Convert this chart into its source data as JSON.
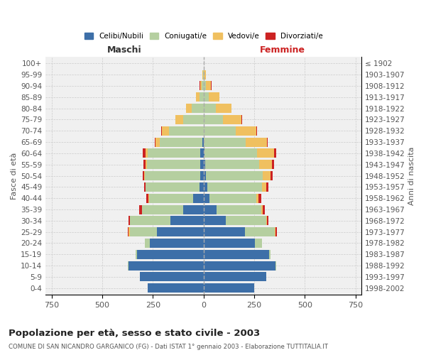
{
  "age_groups": [
    "100+",
    "95-99",
    "90-94",
    "85-89",
    "80-84",
    "75-79",
    "70-74",
    "65-69",
    "60-64",
    "55-59",
    "50-54",
    "45-49",
    "40-44",
    "35-39",
    "30-34",
    "25-29",
    "20-24",
    "15-19",
    "10-14",
    "5-9",
    "0-4"
  ],
  "birth_years": [
    "≤ 1902",
    "1903-1907",
    "1908-1912",
    "1913-1917",
    "1918-1922",
    "1923-1927",
    "1928-1932",
    "1933-1937",
    "1938-1942",
    "1943-1947",
    "1948-1952",
    "1953-1957",
    "1958-1962",
    "1963-1967",
    "1968-1972",
    "1973-1977",
    "1978-1982",
    "1983-1987",
    "1988-1992",
    "1993-1997",
    "1998-2002"
  ],
  "maschi": {
    "celibi": [
      0,
      0,
      0,
      0,
      0,
      0,
      0,
      5,
      15,
      15,
      15,
      20,
      50,
      100,
      165,
      230,
      265,
      330,
      370,
      315,
      275
    ],
    "coniugati": [
      0,
      3,
      8,
      20,
      60,
      100,
      170,
      210,
      260,
      265,
      275,
      265,
      220,
      205,
      200,
      135,
      25,
      5,
      3,
      0,
      0
    ],
    "vedovi": [
      0,
      2,
      10,
      18,
      28,
      38,
      35,
      22,
      12,
      6,
      4,
      3,
      2,
      0,
      0,
      5,
      0,
      0,
      0,
      0,
      0
    ],
    "divorziati": [
      0,
      0,
      3,
      0,
      0,
      3,
      3,
      3,
      12,
      10,
      6,
      6,
      10,
      12,
      6,
      3,
      0,
      0,
      0,
      0,
      0
    ]
  },
  "femmine": {
    "nubili": [
      0,
      0,
      2,
      2,
      2,
      2,
      2,
      2,
      5,
      8,
      12,
      18,
      30,
      65,
      110,
      205,
      255,
      325,
      355,
      310,
      250
    ],
    "coniugate": [
      0,
      2,
      10,
      22,
      60,
      95,
      155,
      205,
      260,
      265,
      280,
      270,
      230,
      220,
      200,
      145,
      32,
      5,
      3,
      0,
      0
    ],
    "vedove": [
      0,
      8,
      25,
      55,
      75,
      90,
      105,
      105,
      82,
      65,
      38,
      22,
      12,
      6,
      4,
      6,
      2,
      0,
      0,
      0,
      0
    ],
    "divorziate": [
      0,
      0,
      3,
      0,
      0,
      3,
      3,
      6,
      10,
      10,
      10,
      10,
      12,
      12,
      6,
      6,
      0,
      0,
      0,
      0,
      0
    ]
  },
  "colors": {
    "celibi": "#3d6fa8",
    "coniugati": "#b5cfa0",
    "vedovi": "#f0c060",
    "divorziati": "#cc2222"
  },
  "xlim": 780,
  "title": "Popolazione per età, sesso e stato civile - 2003",
  "subtitle": "COMUNE DI SAN NICANDRO GARGANICO (FG) - Dati ISTAT 1° gennaio 2003 - Elaborazione TUTTITALIA.IT",
  "ylabel_left": "Fasce di età",
  "ylabel_right": "Anni di nascita",
  "xlabel_left": "Maschi",
  "xlabel_right": "Femmine"
}
